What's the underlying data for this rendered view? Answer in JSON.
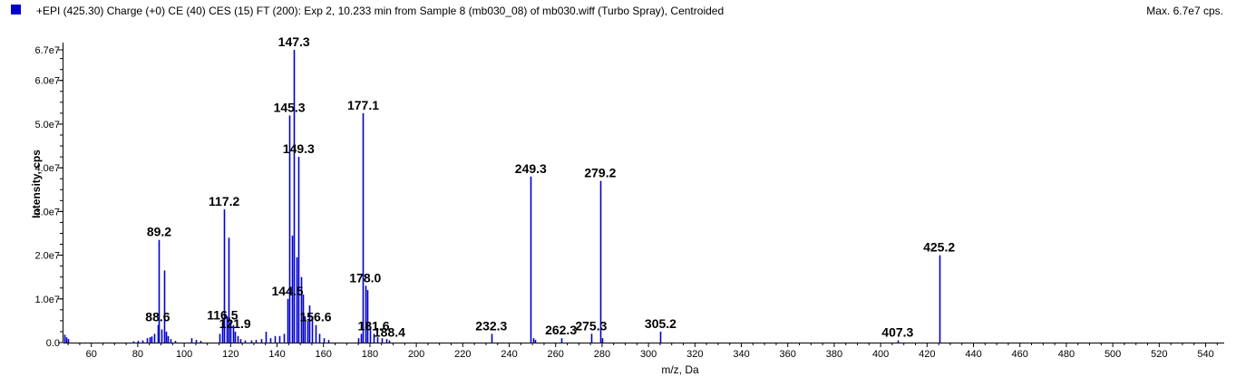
{
  "header": {
    "title": "+EPI (425.30) Charge (+0) CE (40) CES (15) FT (200): Exp 2, 10.233 min from Sample 8 (mb030_08) of mb030.wiff (Turbo Spray), Centroided",
    "max_label": "Max. 6.7e7 cps."
  },
  "colors": {
    "bars": "#0000cc",
    "axis": "#000000"
  },
  "chart_data": {
    "type": "bar",
    "xlabel": "m/z, Da",
    "ylabel": "Intensity, cps",
    "xlim": [
      48,
      548
    ],
    "ylim": [
      0,
      67000000.0
    ],
    "xticks": [
      60,
      80,
      100,
      120,
      140,
      160,
      180,
      200,
      220,
      240,
      260,
      280,
      300,
      320,
      340,
      360,
      380,
      400,
      420,
      440,
      460,
      480,
      500,
      520,
      540
    ],
    "yticks": [
      {
        "value": 0,
        "label": "0.0"
      },
      {
        "value": 10000000.0,
        "label": "1.0e7"
      },
      {
        "value": 20000000.0,
        "label": "2.0e7"
      },
      {
        "value": 30000000.0,
        "label": "3.0e7"
      },
      {
        "value": 40000000.0,
        "label": "4.0e7"
      },
      {
        "value": 50000000.0,
        "label": "5.0e7"
      },
      {
        "value": 60000000.0,
        "label": "6.0e7"
      },
      {
        "value": 67000000.0,
        "label": "6.7e7"
      }
    ],
    "peaks": [
      {
        "mz": 48.5,
        "i": 1800000.0
      },
      {
        "mz": 49.2,
        "i": 1200000.0
      },
      {
        "mz": 50.0,
        "i": 800000.0
      },
      {
        "mz": 78.0,
        "i": 300000.0
      },
      {
        "mz": 80.0,
        "i": 400000.0
      },
      {
        "mz": 82.0,
        "i": 500000.0
      },
      {
        "mz": 84.0,
        "i": 1000000.0
      },
      {
        "mz": 85.0,
        "i": 1200000.0
      },
      {
        "mz": 86.0,
        "i": 1400000.0
      },
      {
        "mz": 87.0,
        "i": 2000000.0
      },
      {
        "mz": 88.6,
        "i": 4000000.0
      },
      {
        "mz": 89.2,
        "i": 23500000.0
      },
      {
        "mz": 90.2,
        "i": 3000000.0
      },
      {
        "mz": 91.2,
        "i": 16500000.0
      },
      {
        "mz": 92.2,
        "i": 2500000.0
      },
      {
        "mz": 93.0,
        "i": 1500000.0
      },
      {
        "mz": 94.0,
        "i": 800000.0
      },
      {
        "mz": 96.0,
        "i": 400000.0
      },
      {
        "mz": 103.0,
        "i": 1000000.0
      },
      {
        "mz": 105.0,
        "i": 600000.0
      },
      {
        "mz": 107.0,
        "i": 400000.0
      },
      {
        "mz": 115.0,
        "i": 2000000.0
      },
      {
        "mz": 116.5,
        "i": 4500000.0
      },
      {
        "mz": 117.2,
        "i": 30500000.0
      },
      {
        "mz": 118.2,
        "i": 6000000.0
      },
      {
        "mz": 119.2,
        "i": 24000000.0
      },
      {
        "mz": 120.0,
        "i": 5000000.0
      },
      {
        "mz": 121.0,
        "i": 4000000.0
      },
      {
        "mz": 121.9,
        "i": 2500000.0
      },
      {
        "mz": 123.0,
        "i": 1500000.0
      },
      {
        "mz": 124.0,
        "i": 800000.0
      },
      {
        "mz": 126.0,
        "i": 500000.0
      },
      {
        "mz": 129.0,
        "i": 500000.0
      },
      {
        "mz": 131.0,
        "i": 600000.0
      },
      {
        "mz": 133.0,
        "i": 800000.0
      },
      {
        "mz": 135.0,
        "i": 2500000.0
      },
      {
        "mz": 137.0,
        "i": 1000000.0
      },
      {
        "mz": 139.0,
        "i": 1500000.0
      },
      {
        "mz": 141.0,
        "i": 1500000.0
      },
      {
        "mz": 143.0,
        "i": 2000000.0
      },
      {
        "mz": 144.5,
        "i": 10000000.0
      },
      {
        "mz": 145.3,
        "i": 52000000.0
      },
      {
        "mz": 146.3,
        "i": 24500000.0
      },
      {
        "mz": 147.3,
        "i": 67000000.0
      },
      {
        "mz": 148.3,
        "i": 19500000.0
      },
      {
        "mz": 149.3,
        "i": 42500000.0
      },
      {
        "mz": 150.3,
        "i": 15000000.0
      },
      {
        "mz": 151.3,
        "i": 11000000.0
      },
      {
        "mz": 152.0,
        "i": 6000000.0
      },
      {
        "mz": 153.0,
        "i": 5000000.0
      },
      {
        "mz": 154.0,
        "i": 8500000.0
      },
      {
        "mz": 155.0,
        "i": 6000000.0
      },
      {
        "mz": 156.6,
        "i": 4000000.0
      },
      {
        "mz": 158.0,
        "i": 2000000.0
      },
      {
        "mz": 160.0,
        "i": 1000000.0
      },
      {
        "mz": 162.0,
        "i": 600000.0
      },
      {
        "mz": 175.0,
        "i": 1000000.0
      },
      {
        "mz": 176.0,
        "i": 2000000.0
      },
      {
        "mz": 177.1,
        "i": 52500000.0
      },
      {
        "mz": 178.0,
        "i": 13000000.0
      },
      {
        "mz": 179.0,
        "i": 12000000.0
      },
      {
        "mz": 180.0,
        "i": 3000000.0
      },
      {
        "mz": 181.6,
        "i": 2000000.0
      },
      {
        "mz": 183.0,
        "i": 1200000.0
      },
      {
        "mz": 185.0,
        "i": 1000000.0
      },
      {
        "mz": 187.0,
        "i": 800000.0
      },
      {
        "mz": 188.4,
        "i": 500000.0
      },
      {
        "mz": 232.3,
        "i": 2000000.0
      },
      {
        "mz": 249.3,
        "i": 38000000.0
      },
      {
        "mz": 250.3,
        "i": 1000000.0
      },
      {
        "mz": 251.0,
        "i": 600000.0
      },
      {
        "mz": 262.3,
        "i": 1000000.0
      },
      {
        "mz": 275.3,
        "i": 2000000.0
      },
      {
        "mz": 279.2,
        "i": 37000000.0
      },
      {
        "mz": 280.2,
        "i": 1000000.0
      },
      {
        "mz": 305.2,
        "i": 2500000.0
      },
      {
        "mz": 407.3,
        "i": 500000.0
      },
      {
        "mz": 425.2,
        "i": 20000000.0
      }
    ],
    "peak_labels": [
      {
        "text": "89.2",
        "mz": 89.2
      },
      {
        "text": "88.6",
        "mz": 88.6
      },
      {
        "text": "117.2",
        "mz": 117.2
      },
      {
        "text": "116.5",
        "mz": 116.5
      },
      {
        "text": "121.9",
        "mz": 121.9
      },
      {
        "text": "147.3",
        "mz": 147.3
      },
      {
        "text": "145.3",
        "mz": 145.3
      },
      {
        "text": "149.3",
        "mz": 149.3
      },
      {
        "text": "144.5",
        "mz": 144.5
      },
      {
        "text": "156.6",
        "mz": 156.6
      },
      {
        "text": "177.1",
        "mz": 177.1
      },
      {
        "text": "178.0",
        "mz": 178.0
      },
      {
        "text": "181.6",
        "mz": 181.6
      },
      {
        "text": "188.4",
        "mz": 188.4
      },
      {
        "text": "232.3",
        "mz": 232.3
      },
      {
        "text": "249.3",
        "mz": 249.3
      },
      {
        "text": "262.3",
        "mz": 262.3
      },
      {
        "text": "275.3",
        "mz": 275.3
      },
      {
        "text": "279.2",
        "mz": 279.2
      },
      {
        "text": "305.2",
        "mz": 305.2
      },
      {
        "text": "407.3",
        "mz": 407.3
      },
      {
        "text": "425.2",
        "mz": 425.2
      }
    ]
  }
}
